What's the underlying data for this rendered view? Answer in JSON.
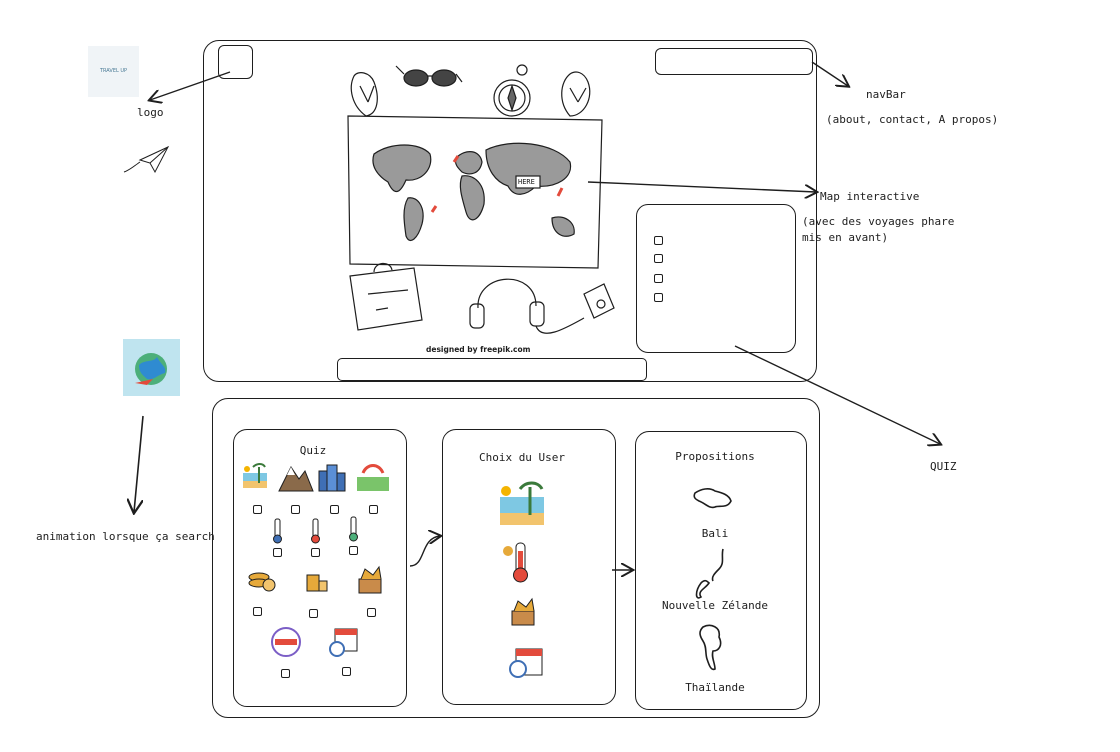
{
  "annotations": {
    "logo": "logo",
    "navbar": "navBar",
    "navbar_detail": "(about, contact, A propos)",
    "map": "Map interactive",
    "map_detail_1": "(avec des voyages phare",
    "map_detail_2": "mis en avant)",
    "quiz": "QUIZ",
    "search_anim": "animation lorsque ça search"
  },
  "logo_thumb_text": "TRAVEL UP",
  "map_credit": "designed by freepik.com",
  "map_pin_label": "HERE",
  "panels": {
    "quiz_title": "Quiz",
    "choice_title": "Choix du User",
    "proposals_title": "Propositions"
  },
  "proposals": [
    {
      "name": "Bali"
    },
    {
      "name": "Nouvelle Zélande"
    },
    {
      "name": "Thaïlande"
    }
  ],
  "quiz_icons": [
    "beach-icon",
    "mountain-icon",
    "city-icon",
    "nature-icon",
    "cold-thermometer-icon",
    "medium-thermometer-icon",
    "warm-thermometer-icon",
    "gold-coins-icon",
    "coins-stack-icon",
    "treasure-icon",
    "weekend-calendar-icon",
    "calendar-clock-icon"
  ],
  "choice_icons": [
    "beach-icon",
    "hot-thermometer-icon",
    "treasure-icon",
    "calendar-clock-icon"
  ],
  "colors": {
    "stroke": "#1e1e1e",
    "sand": "#f2c46d",
    "sea": "#7ec8e3",
    "red": "#e34b3c",
    "gold": "#e6a93a",
    "purple": "#7b5ec6"
  }
}
